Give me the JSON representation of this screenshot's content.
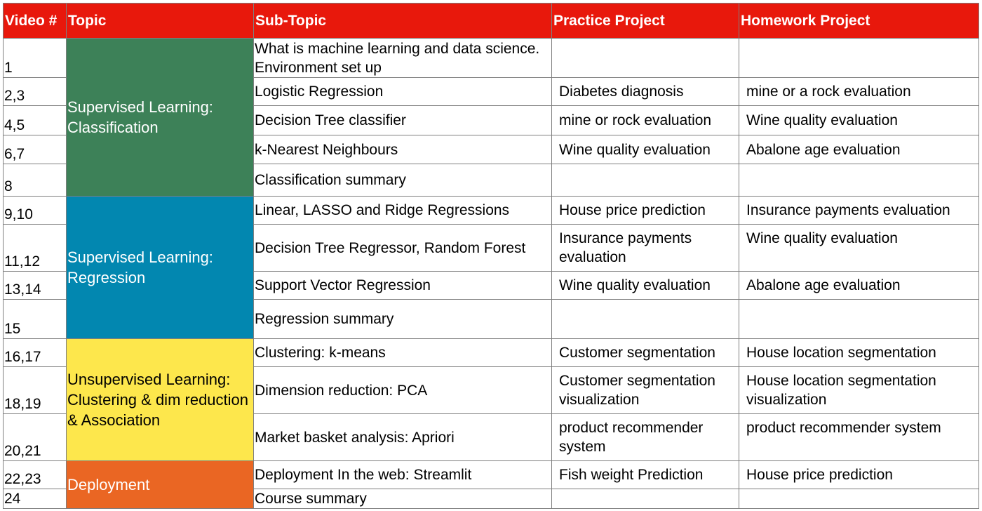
{
  "headers": {
    "video": "Video #",
    "topic": "Topic",
    "subtopic": "Sub-Topic",
    "practice": "Practice Project",
    "homework": "Homework Project"
  },
  "colors": {
    "header": "#e8180c",
    "classification": "#3d8158",
    "regression": "#0287b0",
    "unsupervised": "#fde74c",
    "deployment": "#ea6623"
  },
  "topics": {
    "classification": "Supervised Learning: Classification",
    "regression": "Supervised Learning: Regression",
    "unsupervised": "Unsupervised Learning: Clustering & dim reduction & Association",
    "deployment": "Deployment"
  },
  "rows": [
    {
      "video": "1",
      "subtopic": "What is machine learning and data science. Environment set up",
      "practice": "",
      "homework": ""
    },
    {
      "video": "2,3",
      "subtopic": "Logistic Regression",
      "practice": "Diabetes diagnosis",
      "homework": "mine or a rock evaluation"
    },
    {
      "video": "4,5",
      "subtopic": "Decision Tree classifier",
      "practice": "mine or rock evaluation",
      "homework": "Wine quality evaluation"
    },
    {
      "video": "6,7",
      "subtopic": "k-Nearest Neighbours",
      "practice": "Wine quality evaluation",
      "homework": "Abalone age evaluation"
    },
    {
      "video": "8",
      "subtopic": "Classification summary",
      "practice": "",
      "homework": ""
    },
    {
      "video": "9,10",
      "subtopic": "Linear, LASSO and Ridge Regressions",
      "practice": "House price prediction",
      "homework": "Insurance payments evaluation"
    },
    {
      "video": "11,12",
      "subtopic": "Decision Tree Regressor, Random Forest",
      "practice": "Insurance payments evaluation",
      "homework": "Wine quality evaluation"
    },
    {
      "video": "13,14",
      "subtopic": "Support Vector Regression",
      "practice": "Wine quality evaluation",
      "homework": "Abalone age evaluation"
    },
    {
      "video": "15",
      "subtopic": "Regression summary",
      "practice": "",
      "homework": ""
    },
    {
      "video": "16,17",
      "subtopic": "Clustering: k-means",
      "practice": "Customer segmentation",
      "homework": "House location segmentation"
    },
    {
      "video": "18,19",
      "subtopic": "Dimension reduction: PCA",
      "practice": "Customer segmentation visualization",
      "homework": "House location segmentation visualization"
    },
    {
      "video": "20,21",
      "subtopic": "Market basket analysis: Apriori",
      "practice": "product recommender system",
      "homework": "product recommender system"
    },
    {
      "video": "22,23",
      "subtopic": "Deployment In the web: Streamlit",
      "practice": "Fish weight Prediction",
      "homework": "House price prediction"
    },
    {
      "video": "24",
      "subtopic": "Course summary",
      "practice": "",
      "homework": ""
    }
  ]
}
